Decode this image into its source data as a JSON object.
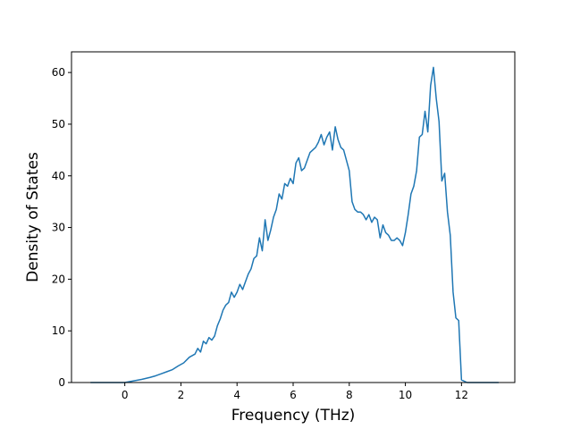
{
  "chart_data": {
    "type": "line",
    "title": "",
    "xlabel": "Frequency (THz)",
    "ylabel": "Density of States",
    "xlim": [
      -1.9,
      13.9
    ],
    "ylim": [
      0,
      64
    ],
    "xticks": [
      0,
      2,
      4,
      6,
      8,
      10,
      12
    ],
    "yticks": [
      0,
      10,
      20,
      30,
      40,
      50,
      60
    ],
    "grid": false,
    "line_color": "#1f77b4",
    "series": [
      {
        "x": [
          -1.2,
          0.0,
          0.3,
          0.6,
          0.9,
          1.1,
          1.3,
          1.5,
          1.7,
          1.9,
          2.1,
          2.3,
          2.5,
          2.6,
          2.7,
          2.8,
          2.9,
          3.0,
          3.1,
          3.2,
          3.3,
          3.4,
          3.5,
          3.6,
          3.7,
          3.8,
          3.9,
          4.0,
          4.1,
          4.2,
          4.3,
          4.4,
          4.5,
          4.6,
          4.7,
          4.8,
          4.9,
          5.0,
          5.1,
          5.2,
          5.3,
          5.4,
          5.5,
          5.6,
          5.7,
          5.8,
          5.9,
          6.0,
          6.1,
          6.2,
          6.3,
          6.4,
          6.5,
          6.6,
          6.7,
          6.8,
          6.9,
          7.0,
          7.1,
          7.2,
          7.3,
          7.4,
          7.5,
          7.6,
          7.7,
          7.8,
          7.9,
          8.0,
          8.1,
          8.2,
          8.3,
          8.4,
          8.5,
          8.6,
          8.7,
          8.8,
          8.9,
          9.0,
          9.1,
          9.2,
          9.3,
          9.4,
          9.5,
          9.6,
          9.7,
          9.8,
          9.9,
          10.0,
          10.1,
          10.2,
          10.3,
          10.4,
          10.5,
          10.6,
          10.7,
          10.8,
          10.9,
          11.0,
          11.1,
          11.2,
          11.3,
          11.4,
          11.5,
          11.6,
          11.7,
          11.8,
          11.9,
          12.0,
          12.2,
          13.3
        ],
        "y": [
          0,
          0,
          0.3,
          0.6,
          1.0,
          1.3,
          1.7,
          2.1,
          2.5,
          3.2,
          3.8,
          4.9,
          5.5,
          6.6,
          5.9,
          8.0,
          7.5,
          8.7,
          8.2,
          9.0,
          11.0,
          12.3,
          14.0,
          15.0,
          15.5,
          17.5,
          16.5,
          17.5,
          19.0,
          18.0,
          19.5,
          21.0,
          22.0,
          24.0,
          24.5,
          28.0,
          25.5,
          31.5,
          27.5,
          29.5,
          32.0,
          33.5,
          36.5,
          35.5,
          38.5,
          38.0,
          39.5,
          38.5,
          42.5,
          43.5,
          41.0,
          41.5,
          43.0,
          44.5,
          45.0,
          45.5,
          46.5,
          48.0,
          46.0,
          47.5,
          48.5,
          45.0,
          49.5,
          47.0,
          45.5,
          45.0,
          43.0,
          41.0,
          35.0,
          33.5,
          33.0,
          33.0,
          32.5,
          31.5,
          32.5,
          31.0,
          32.0,
          31.5,
          28.0,
          30.5,
          29.0,
          28.5,
          27.5,
          27.5,
          28.0,
          27.5,
          26.5,
          29.0,
          32.5,
          36.5,
          38.0,
          41.0,
          47.5,
          48.0,
          52.5,
          48.5,
          57.5,
          61.0,
          55.0,
          50.5,
          39.0,
          40.5,
          33.0,
          28.5,
          17.5,
          12.5,
          12.0,
          0.5,
          0,
          0
        ]
      }
    ]
  }
}
